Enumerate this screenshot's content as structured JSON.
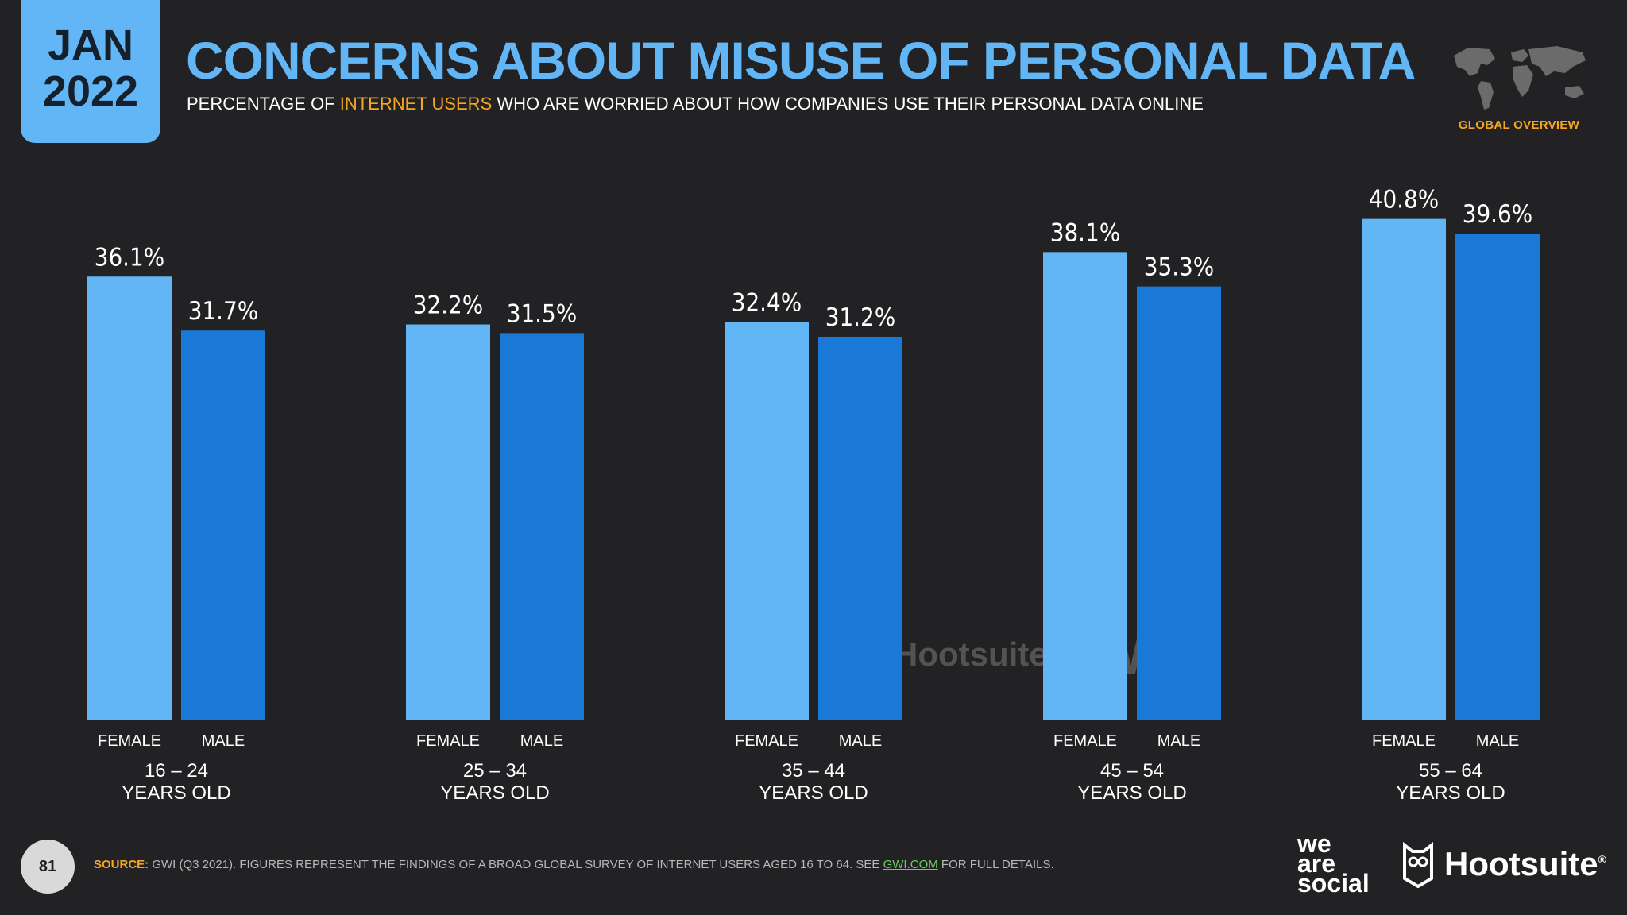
{
  "header": {
    "date_month": "JAN",
    "date_year": "2022",
    "title": "CONCERNS ABOUT MISUSE OF PERSONAL DATA",
    "subtitle_pre": "PERCENTAGE OF ",
    "subtitle_highlight": "INTERNET USERS",
    "subtitle_post": " WHO ARE WORRIED ABOUT HOW COMPANIES USE THEIR PERSONAL DATA ONLINE",
    "region_label": "GLOBAL OVERVIEW",
    "map_icon": "world-map-icon"
  },
  "chart_data": {
    "type": "bar",
    "ylim": [
      0,
      45
    ],
    "grid": false,
    "legend": "none",
    "value_suffix": "%",
    "groups": [
      {
        "label_line1": "16 – 24",
        "label_line2": "YEARS OLD",
        "female": 36.1,
        "male": 31.7
      },
      {
        "label_line1": "25 – 34",
        "label_line2": "YEARS OLD",
        "female": 32.2,
        "male": 31.5
      },
      {
        "label_line1": "35 – 44",
        "label_line2": "YEARS OLD",
        "female": 32.4,
        "male": 31.2
      },
      {
        "label_line1": "45 – 54",
        "label_line2": "YEARS OLD",
        "female": 38.1,
        "male": 35.3
      },
      {
        "label_line1": "55 – 64",
        "label_line2": "YEARS OLD",
        "female": 40.8,
        "male": 39.6
      }
    ],
    "series_labels": {
      "female": "FEMALE",
      "male": "MALE"
    },
    "colors": {
      "female": "#63b6f5",
      "male": "#1a78d6"
    }
  },
  "watermark": {
    "we": "we",
    "are": "are",
    "social": "social",
    "hootsuite": "Hootsuite",
    "gwi": "GWI."
  },
  "footer": {
    "page_number": "81",
    "source_label": "SOURCE:",
    "source_text": " GWI (Q3 2021). FIGURES REPRESENT THE FINDINGS OF A BROAD GLOBAL SURVEY OF INTERNET USERS AGED 16 TO 64. SEE ",
    "source_link": "GWI.COM",
    "source_end": " FOR FULL DETAILS.",
    "logo_we": "we",
    "logo_are": "are",
    "logo_social": "social",
    "logo_hootsuite": "Hootsuite",
    "logo_reg": "®"
  }
}
